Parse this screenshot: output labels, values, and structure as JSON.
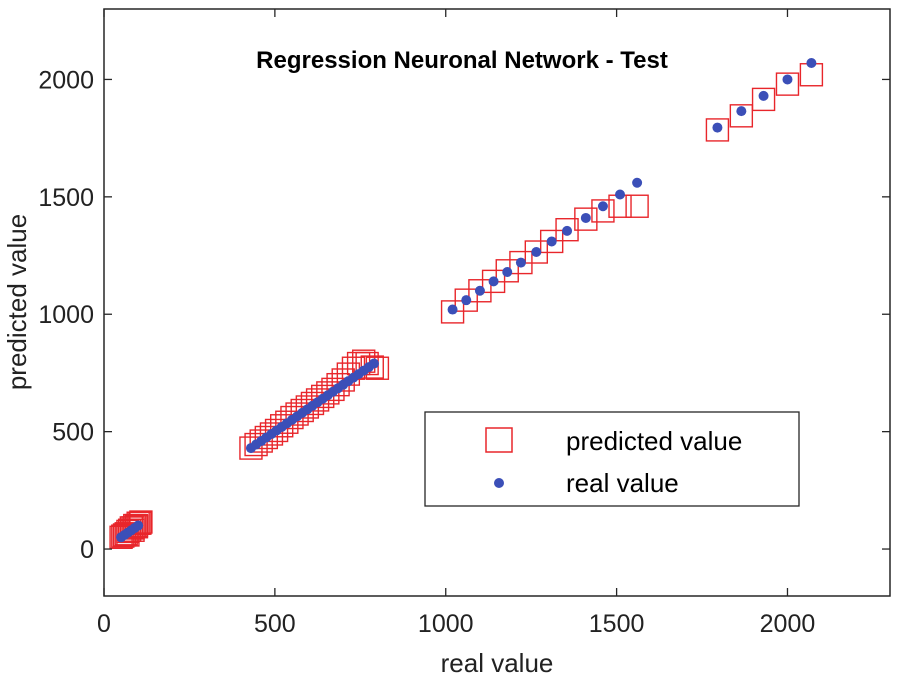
{
  "chart_data": {
    "type": "scatter",
    "title": "Regression Neuronal Network - Test",
    "xlabel": "real value",
    "ylabel": "predicted value",
    "xlim": [
      0,
      2300
    ],
    "ylim": [
      -200,
      2300
    ],
    "xticks": [
      0,
      500,
      1000,
      1500,
      2000
    ],
    "yticks": [
      0,
      500,
      1000,
      1500,
      2000
    ],
    "xtick_labels": [
      "0",
      "500",
      "1000",
      "1500",
      "2000"
    ],
    "ytick_labels": [
      "0",
      "500",
      "1000",
      "1500",
      "2000"
    ],
    "legend_position": "lower-right",
    "series": [
      {
        "name": "predicted value",
        "marker": "square",
        "color": "#e8262b",
        "points": [
          [
            50,
            50
          ],
          [
            55,
            55
          ],
          [
            60,
            60
          ],
          [
            65,
            65
          ],
          [
            70,
            75
          ],
          [
            75,
            80
          ],
          [
            80,
            90
          ],
          [
            85,
            90
          ],
          [
            90,
            100
          ],
          [
            95,
            100
          ],
          [
            100,
            110
          ],
          [
            105,
            110
          ],
          [
            108,
            115
          ],
          [
            70,
            60
          ],
          [
            85,
            80
          ],
          [
            95,
            95
          ],
          [
            430,
            430
          ],
          [
            445,
            445
          ],
          [
            460,
            460
          ],
          [
            475,
            475
          ],
          [
            490,
            490
          ],
          [
            505,
            505
          ],
          [
            520,
            525
          ],
          [
            535,
            540
          ],
          [
            550,
            560
          ],
          [
            565,
            575
          ],
          [
            580,
            590
          ],
          [
            595,
            605
          ],
          [
            610,
            620
          ],
          [
            625,
            635
          ],
          [
            640,
            650
          ],
          [
            655,
            665
          ],
          [
            670,
            680
          ],
          [
            685,
            700
          ],
          [
            700,
            720
          ],
          [
            715,
            745
          ],
          [
            730,
            770
          ],
          [
            745,
            790
          ],
          [
            760,
            800
          ],
          [
            770,
            790
          ],
          [
            785,
            775
          ],
          [
            800,
            770
          ],
          [
            1020,
            1010
          ],
          [
            1060,
            1060
          ],
          [
            1100,
            1100
          ],
          [
            1140,
            1140
          ],
          [
            1180,
            1185
          ],
          [
            1220,
            1220
          ],
          [
            1265,
            1265
          ],
          [
            1310,
            1310
          ],
          [
            1355,
            1360
          ],
          [
            1410,
            1405
          ],
          [
            1460,
            1440
          ],
          [
            1510,
            1460
          ],
          [
            1560,
            1460
          ],
          [
            1795,
            1785
          ],
          [
            1865,
            1845
          ],
          [
            1930,
            1915
          ],
          [
            2000,
            1980
          ],
          [
            2070,
            2020
          ]
        ]
      },
      {
        "name": "real value",
        "marker": "dot",
        "color": "#3b4fb8",
        "points": [
          [
            50,
            50
          ],
          [
            60,
            60
          ],
          [
            70,
            70
          ],
          [
            80,
            80
          ],
          [
            90,
            90
          ],
          [
            100,
            100
          ],
          [
            430,
            430
          ],
          [
            445,
            445
          ],
          [
            460,
            460
          ],
          [
            475,
            475
          ],
          [
            490,
            490
          ],
          [
            505,
            505
          ],
          [
            520,
            520
          ],
          [
            535,
            535
          ],
          [
            550,
            550
          ],
          [
            565,
            565
          ],
          [
            580,
            580
          ],
          [
            595,
            595
          ],
          [
            610,
            610
          ],
          [
            625,
            625
          ],
          [
            640,
            640
          ],
          [
            655,
            655
          ],
          [
            670,
            670
          ],
          [
            685,
            685
          ],
          [
            700,
            700
          ],
          [
            715,
            715
          ],
          [
            730,
            730
          ],
          [
            745,
            745
          ],
          [
            760,
            760
          ],
          [
            775,
            775
          ],
          [
            790,
            790
          ],
          [
            1020,
            1020
          ],
          [
            1060,
            1060
          ],
          [
            1100,
            1100
          ],
          [
            1140,
            1140
          ],
          [
            1180,
            1180
          ],
          [
            1220,
            1220
          ],
          [
            1265,
            1265
          ],
          [
            1310,
            1310
          ],
          [
            1355,
            1355
          ],
          [
            1410,
            1410
          ],
          [
            1460,
            1460
          ],
          [
            1510,
            1510
          ],
          [
            1560,
            1560
          ],
          [
            1795,
            1795
          ],
          [
            1865,
            1865
          ],
          [
            1930,
            1930
          ],
          [
            2000,
            2000
          ],
          [
            2070,
            2070
          ]
        ]
      }
    ]
  }
}
